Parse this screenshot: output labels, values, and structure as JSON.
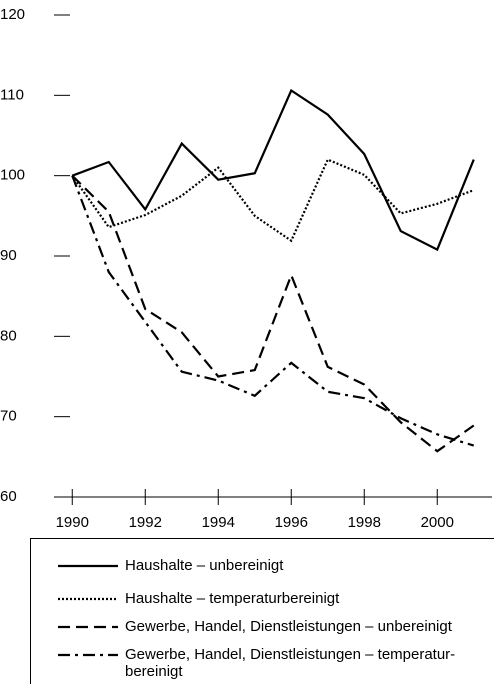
{
  "chart_data": {
    "type": "line",
    "x": [
      1990,
      1991,
      1992,
      1993,
      1994,
      1995,
      1996,
      1997,
      1998,
      1999,
      2000,
      2001
    ],
    "series": [
      {
        "name": "Haushalte – unbereinigt",
        "color": "#000000",
        "linestyle": "solid",
        "values": [
          100,
          101.7,
          95.8,
          104,
          99.5,
          100.3,
          110.6,
          107.6,
          102.7,
          93.1,
          90.8,
          102
        ]
      },
      {
        "name": "Haushalte – temperaturbereinigt",
        "color": "#000000",
        "linestyle": "dotted",
        "values": [
          100,
          93.6,
          95.1,
          97.5,
          101,
          95,
          91.9,
          102,
          100.1,
          95.3,
          96.5,
          98.2
        ]
      },
      {
        "name": "Gewerbe, Handel, Dienstleistungen – unbereinigt",
        "color": "#000000",
        "linestyle": "dashed",
        "values": [
          100,
          95.5,
          83.4,
          80.5,
          75,
          75.8,
          87.6,
          76.2,
          74,
          69.3,
          65.7,
          68.9
        ]
      },
      {
        "name": "Gewerbe, Handel, Dienstleistungen – temperatur-bereinigt",
        "color": "#000000",
        "linestyle": "dashdot",
        "values": [
          100,
          88,
          81.8,
          75.6,
          74.5,
          72.6,
          76.7,
          73.1,
          72.3,
          69.8,
          67.8,
          66.4
        ]
      }
    ],
    "xlim": [
      1989.5,
      2001.5
    ],
    "xticks": [
      1990,
      1992,
      1994,
      1996,
      1998,
      2000
    ],
    "ylim": [
      60,
      120
    ],
    "yticks": [
      60,
      70,
      80,
      90,
      100,
      110,
      120
    ],
    "grid": false,
    "legend": "bottom"
  }
}
